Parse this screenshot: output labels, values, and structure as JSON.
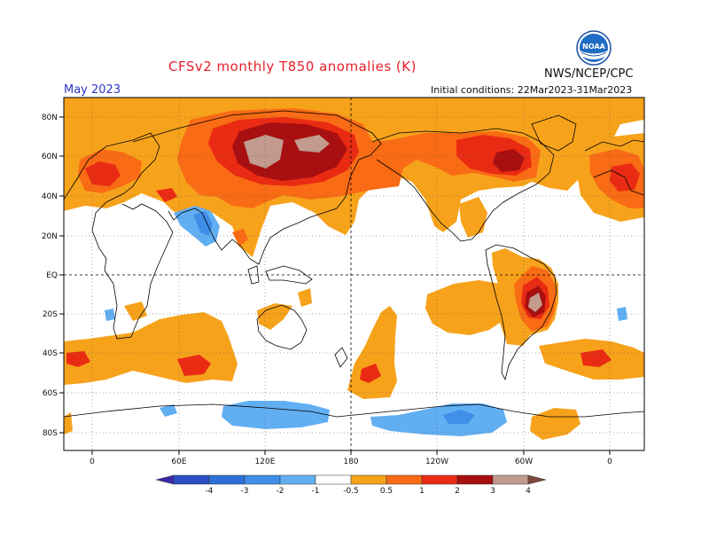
{
  "title": "CFSv2 monthly T850 anomalies (K)",
  "agency": "NWS/NCEP/CPC",
  "logo": {
    "icon": "noaa-logo",
    "text": "NOAA"
  },
  "month": "May 2023",
  "initial_conditions": "Initial conditions: 22Mar2023-31Mar2023",
  "lat_labels": [
    "80N",
    "60N",
    "40N",
    "20N",
    "EQ",
    "20S",
    "40S",
    "60S",
    "80S"
  ],
  "lon_labels": [
    "0",
    "60E",
    "120E",
    "180",
    "120W",
    "60W",
    "0"
  ],
  "colorbar": {
    "labels": [
      "-4",
      "-3",
      "-2",
      "-1",
      "-0.5",
      "0.5",
      "1",
      "2",
      "3",
      "4"
    ],
    "colors": [
      "#3a2aa8",
      "#2b4fc6",
      "#2e6fd6",
      "#3f8fe8",
      "#62aef2",
      "#ffffff",
      "#f7a21b",
      "#f96b14",
      "#ea2b13",
      "#a80f10",
      "#c29a8e",
      "#7d4a3c"
    ]
  },
  "anomaly_colors": {
    "pos_05": "#f7a21b",
    "pos_1": "#f96b14",
    "pos_2": "#ea2b13",
    "pos_3": "#a80f10",
    "pos_4": "#c29a8e",
    "neg_05": "#62aef2",
    "neg_1": "#3f8fe8"
  }
}
